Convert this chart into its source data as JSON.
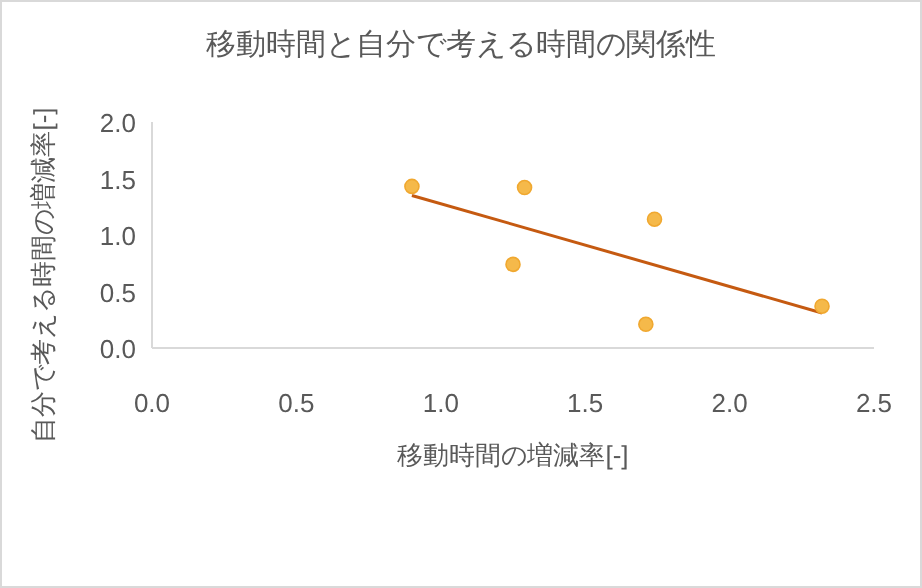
{
  "chart_data": {
    "type": "scatter",
    "title": "移動時間と自分で考える時間の関係性",
    "xlabel": "移動時間の増減率[-]",
    "ylabel": "自分で考える時間の増減率[-]",
    "xlim": [
      0,
      2.5
    ],
    "xticks": [
      {
        "value": 0,
        "label": "0.0"
      },
      {
        "value": 0.5,
        "label": "0.5"
      },
      {
        "value": 1,
        "label": "1.0"
      },
      {
        "value": 1.5,
        "label": "1.5"
      },
      {
        "value": 2,
        "label": "2.0"
      },
      {
        "value": 2.5,
        "label": "2.5"
      }
    ],
    "ylim": [
      0,
      2
    ],
    "yticks": [
      {
        "value": 0,
        "label": "0.0"
      },
      {
        "value": 0.5,
        "label": "0.5"
      },
      {
        "value": 1,
        "label": "1.0"
      },
      {
        "value": 1.5,
        "label": "1.5"
      },
      {
        "value": 2,
        "label": "2.0"
      }
    ],
    "grid": false,
    "series": [
      {
        "marker": "circle",
        "color": "#f5b94a",
        "x": [
          0.9,
          1.29,
          1.74,
          1.25,
          1.71,
          2.32
        ],
        "values": [
          1.43,
          1.42,
          1.14,
          0.74,
          0.21,
          0.37
        ]
      },
      {
        "type": "line",
        "color": "#c55a11",
        "x": [
          0.9,
          2.32
        ],
        "values": [
          1.35,
          0.31
        ]
      }
    ]
  }
}
